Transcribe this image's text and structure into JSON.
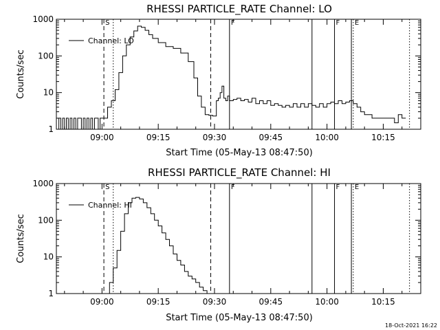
{
  "timestamp": "18-Oct-2021 16:22",
  "chart_data": [
    {
      "type": "line",
      "title": "RHESSI PARTICLE_RATE Channel: LO",
      "xlabel": "Start Time (05-May-13 08:47:50)",
      "ylabel": "Counts/sec",
      "yscale": "log",
      "ylim": [
        1,
        1000
      ],
      "xlim": [
        "08:47:50",
        "10:25:00"
      ],
      "x_tick_labels": [
        "09:00",
        "09:15",
        "09:30",
        "09:45",
        "10:00",
        "10:15"
      ],
      "y_tick_labels": [
        "1",
        "10",
        "100",
        "1000"
      ],
      "legend": "Channel: LO",
      "legend_position": "top-left",
      "markers": [
        {
          "label": "S",
          "time": "09:00:30",
          "style": "dashed"
        },
        {
          "label": "",
          "time": "09:03:00",
          "style": "dotted"
        },
        {
          "label": "",
          "time": "09:29:00",
          "style": "dashed"
        },
        {
          "label": "F",
          "time": "09:34:00",
          "style": "solid"
        },
        {
          "label": "",
          "time": "09:56:00",
          "style": "solid"
        },
        {
          "label": "F",
          "time": "10:02:00",
          "style": "solid"
        },
        {
          "label": "",
          "time": "10:06:30",
          "style": "solid"
        },
        {
          "label": "E",
          "time": "10:07:00",
          "style": "dotted"
        },
        {
          "label": "",
          "time": "10:22:00",
          "style": "dotted"
        }
      ],
      "series": [
        {
          "x": [
            "08:47:50",
            "08:48:30",
            "08:49:00",
            "08:49:30",
            "08:50:00",
            "08:50:30",
            "08:51:00",
            "08:51:30",
            "08:52:00",
            "08:52:30",
            "08:53:00",
            "08:53:30",
            "08:54:00",
            "08:54:30",
            "08:55:00",
            "08:55:30",
            "08:56:00",
            "08:56:30",
            "08:57:00",
            "08:57:30",
            "08:58:00",
            "08:58:30",
            "08:59:00",
            "08:59:30",
            "09:00:00",
            "09:00:30",
            "09:01:30",
            "09:02:30",
            "09:03:30",
            "09:04:30",
            "09:05:30",
            "09:06:30",
            "09:07:30",
            "09:08:30",
            "09:09:30",
            "09:10:30",
            "09:11:30",
            "09:12:30",
            "09:13:30",
            "09:15:00",
            "09:17:00",
            "09:19:00",
            "09:21:00",
            "09:23:00",
            "09:24:30",
            "09:25:30",
            "09:26:30",
            "09:27:30",
            "09:28:30",
            "09:29:30",
            "09:30:30",
            "09:31:00",
            "09:31:30",
            "09:32:00",
            "09:32:30",
            "09:33:00",
            "09:33:30",
            "09:34:00",
            "09:35:00",
            "09:36:00",
            "09:37:00",
            "09:38:00",
            "09:39:00",
            "09:40:00",
            "09:41:00",
            "09:42:00",
            "09:43:00",
            "09:44:00",
            "09:45:00",
            "09:46:00",
            "09:47:00",
            "09:48:00",
            "09:49:00",
            "09:50:00",
            "09:51:00",
            "09:52:00",
            "09:53:00",
            "09:54:00",
            "09:55:00",
            "09:56:00",
            "09:57:00",
            "09:58:00",
            "09:59:00",
            "10:00:00",
            "10:01:00",
            "10:02:00",
            "10:03:00",
            "10:04:00",
            "10:05:00",
            "10:06:00",
            "10:07:00",
            "10:08:00",
            "10:09:00",
            "10:10:00",
            "10:11:00",
            "10:12:00",
            "10:13:00",
            "10:14:00",
            "10:15:00",
            "10:16:00",
            "10:17:00",
            "10:18:00",
            "10:19:00",
            "10:20:00",
            "10:21:00"
          ],
          "y": [
            1,
            2,
            1,
            2,
            1,
            2,
            1,
            2,
            1,
            2,
            1,
            2,
            2,
            1,
            2,
            1,
            2,
            1,
            2,
            1,
            2,
            2,
            1,
            2,
            2,
            2,
            4,
            6,
            12,
            35,
            100,
            200,
            330,
            480,
            650,
            600,
            500,
            380,
            300,
            230,
            180,
            160,
            120,
            70,
            25,
            8,
            4,
            2.5,
            2.4,
            2.3,
            6,
            7,
            10,
            15,
            7,
            6,
            8,
            6,
            6.5,
            7,
            6,
            6.5,
            5.5,
            7,
            5,
            6,
            5,
            6,
            4.5,
            5,
            4.5,
            4,
            4.5,
            4,
            5,
            4,
            5,
            4,
            5,
            4.5,
            4,
            5,
            4,
            5,
            5.5,
            5,
            6,
            5,
            5.5,
            6,
            5,
            4,
            3,
            2.5,
            2.5,
            2,
            2,
            2,
            2,
            2,
            2,
            1.5,
            2.5,
            2,
            2
          ]
        }
      ]
    },
    {
      "type": "line",
      "title": "RHESSI PARTICLE_RATE Channel: HI",
      "xlabel": "Start Time (05-May-13 08:47:50)",
      "ylabel": "Counts/sec",
      "yscale": "log",
      "ylim": [
        1,
        1000
      ],
      "xlim": [
        "08:47:50",
        "10:25:00"
      ],
      "x_tick_labels": [
        "09:00",
        "09:15",
        "09:30",
        "09:45",
        "10:00",
        "10:15"
      ],
      "y_tick_labels": [
        "1",
        "10",
        "100",
        "1000"
      ],
      "legend": "Channel: HI",
      "legend_position": "top-left",
      "markers": [
        {
          "label": "S",
          "time": "09:00:30",
          "style": "dashed"
        },
        {
          "label": "",
          "time": "09:03:00",
          "style": "dotted"
        },
        {
          "label": "",
          "time": "09:29:00",
          "style": "dashed"
        },
        {
          "label": "F",
          "time": "09:34:00",
          "style": "solid"
        },
        {
          "label": "",
          "time": "09:56:00",
          "style": "solid"
        },
        {
          "label": "F",
          "time": "10:02:00",
          "style": "solid"
        },
        {
          "label": "",
          "time": "10:06:30",
          "style": "solid"
        },
        {
          "label": "E",
          "time": "10:07:00",
          "style": "dotted"
        },
        {
          "label": "",
          "time": "10:22:00",
          "style": "dotted"
        }
      ],
      "series": [
        {
          "x": [
            "09:01:00",
            "09:02:00",
            "09:03:00",
            "09:04:00",
            "09:05:00",
            "09:06:00",
            "09:07:00",
            "09:08:00",
            "09:09:00",
            "09:10:00",
            "09:11:00",
            "09:12:00",
            "09:13:00",
            "09:14:00",
            "09:15:00",
            "09:16:00",
            "09:17:00",
            "09:18:00",
            "09:19:00",
            "09:20:00",
            "09:21:00",
            "09:22:00",
            "09:23:00",
            "09:24:00",
            "09:25:00",
            "09:26:00",
            "09:27:00",
            "09:28:00"
          ],
          "y": [
            1,
            2,
            5,
            15,
            50,
            150,
            300,
            400,
            420,
            380,
            300,
            220,
            150,
            100,
            70,
            45,
            30,
            20,
            12,
            8,
            6,
            4,
            3,
            2.5,
            2,
            1.5,
            1.2,
            1
          ]
        }
      ]
    }
  ]
}
